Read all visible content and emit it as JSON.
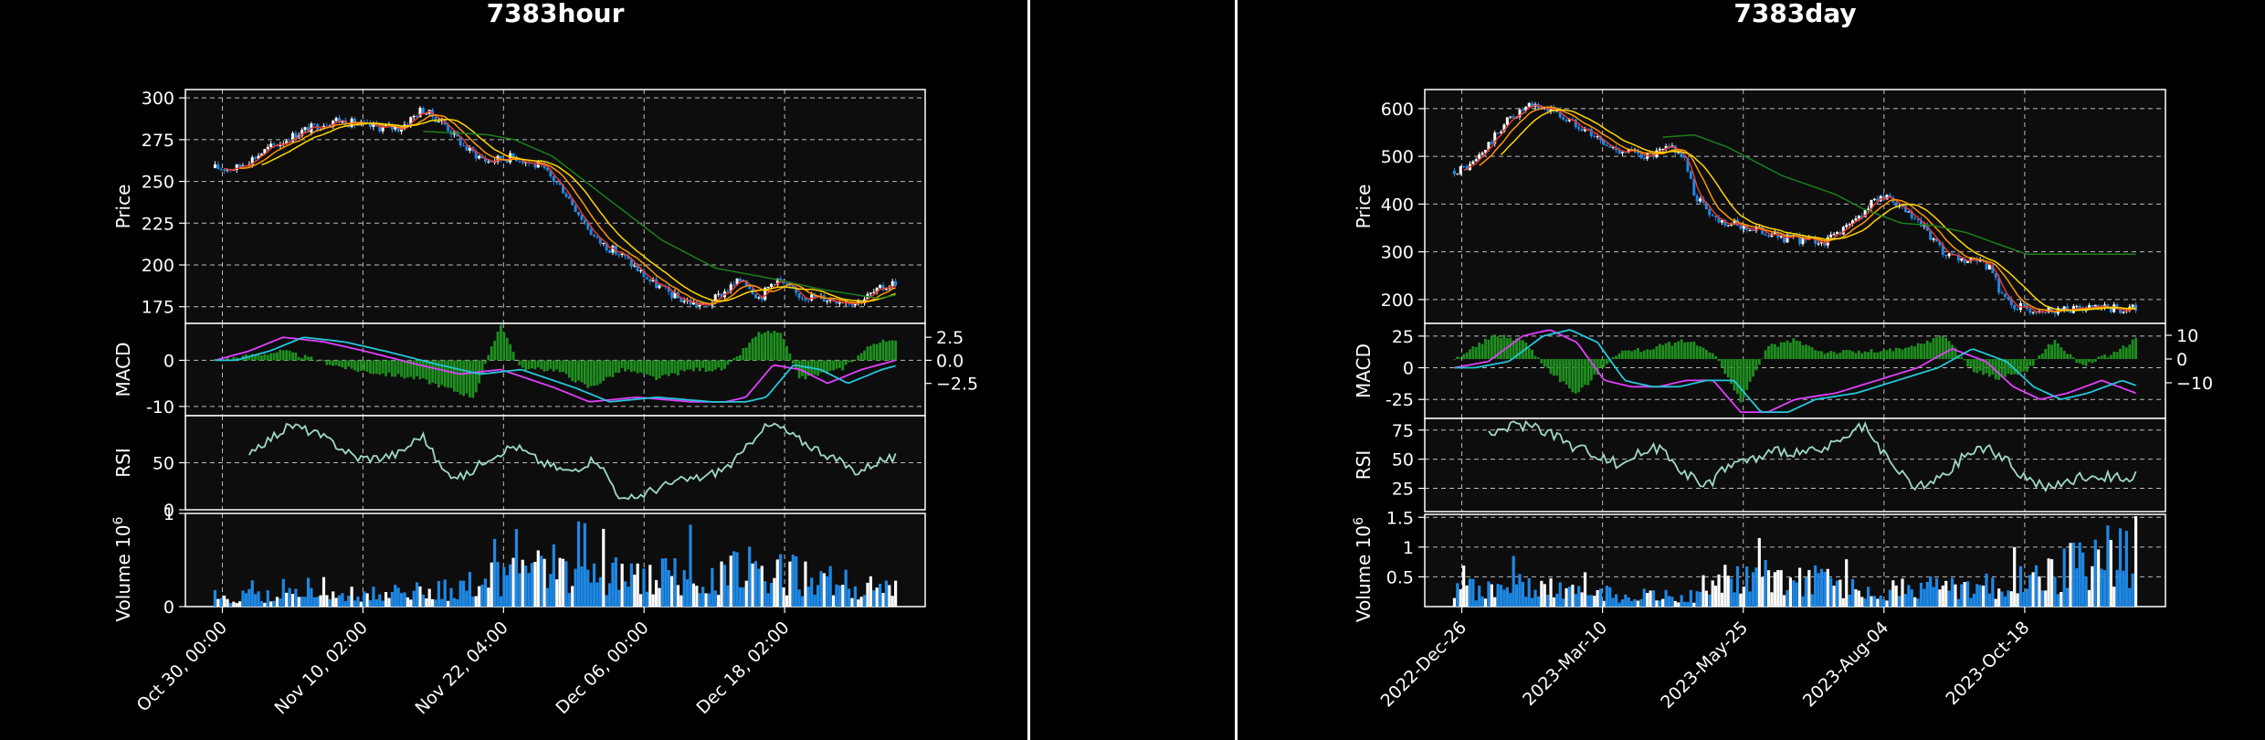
{
  "chart_data": [
    {
      "type": "candlestick",
      "title": "7383hour",
      "price_label": "Price",
      "macd_label": "MACD",
      "rsi_label": "RSI",
      "volume_label": "Volume",
      "volume_exp": "6",
      "x_ticks": [
        "Oct 30, 00:00",
        "Nov 10, 02:00",
        "Nov 22, 04:00",
        "Dec 06, 00:00",
        "Dec 18, 02:00"
      ],
      "x_tick_pos": [
        0.05,
        0.24,
        0.43,
        0.62,
        0.81
      ],
      "price_ylim": [
        165,
        305
      ],
      "price_ticks": [
        175,
        200,
        225,
        250,
        275,
        300
      ],
      "price_anchors": [
        [
          0,
          258
        ],
        [
          0.04,
          258
        ],
        [
          0.1,
          270
        ],
        [
          0.16,
          280
        ],
        [
          0.22,
          287
        ],
        [
          0.28,
          283
        ],
        [
          0.34,
          282
        ],
        [
          0.38,
          293
        ],
        [
          0.42,
          285
        ],
        [
          0.46,
          270
        ],
        [
          0.5,
          262
        ],
        [
          0.55,
          265
        ],
        [
          0.6,
          258
        ],
        [
          0.64,
          245
        ],
        [
          0.7,
          215
        ],
        [
          0.75,
          205
        ],
        [
          0.8,
          190
        ],
        [
          0.85,
          180
        ],
        [
          0.9,
          175
        ],
        [
          0.94,
          185
        ],
        [
          0.97,
          192
        ],
        [
          1,
          180
        ],
        [
          1.03,
          192
        ],
        [
          1.07,
          182
        ],
        [
          1.12,
          180
        ],
        [
          1.18,
          178
        ],
        [
          1.22,
          185
        ],
        [
          1.25,
          190
        ]
      ],
      "green_ma_anchors": [
        [
          0.38,
          280
        ],
        [
          0.5,
          278
        ],
        [
          0.55,
          275
        ],
        [
          0.62,
          265
        ],
        [
          0.72,
          240
        ],
        [
          0.82,
          215
        ],
        [
          0.92,
          198
        ],
        [
          1.02,
          192
        ],
        [
          1.12,
          185
        ],
        [
          1.22,
          180
        ],
        [
          1.25,
          182
        ]
      ],
      "macd_ylim": [
        -12,
        8
      ],
      "macd_ticks_left": [
        0,
        -10
      ],
      "macd_ticks_right": [
        "2.5",
        "0.0",
        "−2.5"
      ],
      "macd_right_vals": [
        2.5,
        0,
        -2.5
      ],
      "macd_right_range": [
        -6,
        4
      ],
      "macd_anchors": [
        [
          0,
          0
        ],
        [
          0.05,
          2
        ],
        [
          0.1,
          5
        ],
        [
          0.16,
          4
        ],
        [
          0.22,
          2
        ],
        [
          0.3,
          -1
        ],
        [
          0.36,
          -3
        ],
        [
          0.42,
          -2
        ],
        [
          0.5,
          -6
        ],
        [
          0.55,
          -9
        ],
        [
          0.62,
          -8
        ],
        [
          0.7,
          -9
        ],
        [
          0.75,
          -9
        ],
        [
          0.78,
          -8
        ],
        [
          0.82,
          -1
        ],
        [
          0.86,
          -2
        ],
        [
          0.9,
          -5
        ],
        [
          0.95,
          -2
        ],
        [
          1,
          0
        ]
      ],
      "hist_anchors": [
        [
          0,
          0
        ],
        [
          0.1,
          1
        ],
        [
          0.2,
          -1
        ],
        [
          0.3,
          -2
        ],
        [
          0.38,
          -4
        ],
        [
          0.42,
          4
        ],
        [
          0.45,
          -1
        ],
        [
          0.5,
          -1
        ],
        [
          0.55,
          -3
        ],
        [
          0.6,
          -1
        ],
        [
          0.65,
          -2
        ],
        [
          0.7,
          -1
        ],
        [
          0.75,
          -1
        ],
        [
          0.8,
          3
        ],
        [
          0.83,
          3
        ],
        [
          0.86,
          -2
        ],
        [
          0.92,
          -1
        ],
        [
          0.97,
          2
        ],
        [
          1,
          2
        ]
      ],
      "rsi_ylim": [
        0,
        100
      ],
      "rsi_ticks": [
        0,
        50
      ],
      "rsi_anchors": [
        [
          0.06,
          62
        ],
        [
          0.1,
          75
        ],
        [
          0.14,
          90
        ],
        [
          0.18,
          82
        ],
        [
          0.22,
          70
        ],
        [
          0.26,
          55
        ],
        [
          0.3,
          55
        ],
        [
          0.34,
          60
        ],
        [
          0.38,
          80
        ],
        [
          0.42,
          40
        ],
        [
          0.46,
          35
        ],
        [
          0.5,
          55
        ],
        [
          0.55,
          68
        ],
        [
          0.6,
          50
        ],
        [
          0.65,
          40
        ],
        [
          0.7,
          55
        ],
        [
          0.75,
          8
        ],
        [
          0.8,
          20
        ],
        [
          0.85,
          30
        ],
        [
          0.9,
          35
        ],
        [
          0.94,
          45
        ],
        [
          0.97,
          60
        ],
        [
          1,
          85
        ],
        [
          1.03,
          90
        ],
        [
          1.07,
          75
        ],
        [
          1.12,
          60
        ],
        [
          1.18,
          40
        ],
        [
          1.22,
          52
        ],
        [
          1.25,
          55
        ]
      ],
      "vol_ylim": [
        0,
        1.0
      ],
      "vol_ticks": [
        0,
        1
      ],
      "vol_anchors": [
        [
          0,
          0.12
        ],
        [
          0.2,
          0.15
        ],
        [
          0.35,
          0.2
        ],
        [
          0.42,
          0.35
        ],
        [
          0.5,
          0.45
        ],
        [
          0.6,
          0.35
        ],
        [
          0.7,
          0.4
        ],
        [
          0.8,
          0.45
        ],
        [
          0.9,
          0.3
        ],
        [
          1,
          0.2
        ]
      ]
    },
    {
      "type": "candlestick",
      "title": "7383day",
      "price_label": "Price",
      "macd_label": "MACD",
      "rsi_label": "RSI",
      "volume_label": "Volume",
      "volume_exp": "6",
      "x_ticks": [
        "2022-Dec-26",
        "2023-Mar-10",
        "2023-May-25",
        "2023-Aug-04",
        "2023-Oct-18"
      ],
      "x_tick_pos": [
        0.05,
        0.24,
        0.43,
        0.62,
        0.81
      ],
      "price_ylim": [
        150,
        640
      ],
      "price_ticks": [
        200,
        300,
        400,
        500,
        600
      ],
      "price_anchors": [
        [
          0,
          470
        ],
        [
          0.03,
          480
        ],
        [
          0.06,
          520
        ],
        [
          0.1,
          580
        ],
        [
          0.14,
          605
        ],
        [
          0.18,
          600
        ],
        [
          0.2,
          580
        ],
        [
          0.24,
          560
        ],
        [
          0.28,
          520
        ],
        [
          0.32,
          510
        ],
        [
          0.36,
          500
        ],
        [
          0.4,
          520
        ],
        [
          0.42,
          500
        ],
        [
          0.44,
          420
        ],
        [
          0.48,
          370
        ],
        [
          0.52,
          355
        ],
        [
          0.56,
          345
        ],
        [
          0.6,
          330
        ],
        [
          0.64,
          325
        ],
        [
          0.68,
          320
        ],
        [
          0.7,
          340
        ],
        [
          0.73,
          360
        ],
        [
          0.76,
          395
        ],
        [
          0.78,
          420
        ],
        [
          0.82,
          390
        ],
        [
          0.86,
          350
        ],
        [
          0.88,
          320
        ],
        [
          0.9,
          290
        ],
        [
          0.94,
          280
        ],
        [
          0.98,
          270
        ],
        [
          1,
          220
        ],
        [
          1.02,
          190
        ],
        [
          1.05,
          180
        ],
        [
          1.2,
          180
        ]
      ],
      "green_ma_anchors": [
        [
          0.38,
          540
        ],
        [
          0.44,
          545
        ],
        [
          0.5,
          520
        ],
        [
          0.6,
          460
        ],
        [
          0.7,
          420
        ],
        [
          0.75,
          390
        ],
        [
          0.82,
          360
        ],
        [
          0.88,
          355
        ],
        [
          0.94,
          340
        ],
        [
          1,
          315
        ],
        [
          1.05,
          295
        ]
      ],
      "macd_ylim": [
        -40,
        35
      ],
      "macd_ticks_left": [
        25,
        0,
        -25
      ],
      "macd_ticks_right": [
        "10",
        "0",
        "−10"
      ],
      "macd_right_vals": [
        10,
        0,
        -10
      ],
      "macd_right_range": [
        -25,
        15
      ],
      "macd_anchors": [
        [
          0,
          0
        ],
        [
          0.05,
          5
        ],
        [
          0.1,
          25
        ],
        [
          0.14,
          30
        ],
        [
          0.18,
          20
        ],
        [
          0.22,
          -10
        ],
        [
          0.26,
          -15
        ],
        [
          0.3,
          -15
        ],
        [
          0.34,
          -10
        ],
        [
          0.38,
          -10
        ],
        [
          0.42,
          -35
        ],
        [
          0.46,
          -35
        ],
        [
          0.5,
          -25
        ],
        [
          0.56,
          -20
        ],
        [
          0.62,
          -10
        ],
        [
          0.68,
          0
        ],
        [
          0.73,
          15
        ],
        [
          0.78,
          5
        ],
        [
          0.82,
          -15
        ],
        [
          0.86,
          -25
        ],
        [
          0.9,
          -20
        ],
        [
          0.95,
          -10
        ],
        [
          1,
          -20
        ]
      ],
      "hist_anchors": [
        [
          0,
          0
        ],
        [
          0.06,
          10
        ],
        [
          0.1,
          8
        ],
        [
          0.14,
          -5
        ],
        [
          0.18,
          -15
        ],
        [
          0.24,
          3
        ],
        [
          0.28,
          4
        ],
        [
          0.34,
          8
        ],
        [
          0.38,
          3
        ],
        [
          0.42,
          -18
        ],
        [
          0.46,
          5
        ],
        [
          0.5,
          8
        ],
        [
          0.54,
          3
        ],
        [
          0.6,
          3
        ],
        [
          0.66,
          4
        ],
        [
          0.72,
          10
        ],
        [
          0.76,
          -5
        ],
        [
          0.8,
          -8
        ],
        [
          0.84,
          -5
        ],
        [
          0.88,
          8
        ],
        [
          0.92,
          -3
        ],
        [
          0.97,
          3
        ],
        [
          1,
          8
        ]
      ],
      "rsi_ylim": [
        5,
        85
      ],
      "rsi_ticks": [
        25,
        50,
        75
      ],
      "rsi_anchors": [
        [
          0.06,
          70
        ],
        [
          0.1,
          78
        ],
        [
          0.14,
          80
        ],
        [
          0.18,
          72
        ],
        [
          0.22,
          60
        ],
        [
          0.26,
          55
        ],
        [
          0.3,
          45
        ],
        [
          0.34,
          55
        ],
        [
          0.38,
          60
        ],
        [
          0.42,
          40
        ],
        [
          0.46,
          25
        ],
        [
          0.5,
          45
        ],
        [
          0.55,
          50
        ],
        [
          0.6,
          58
        ],
        [
          0.65,
          55
        ],
        [
          0.7,
          62
        ],
        [
          0.75,
          78
        ],
        [
          0.8,
          45
        ],
        [
          0.85,
          25
        ],
        [
          0.9,
          35
        ],
        [
          0.94,
          55
        ],
        [
          0.98,
          60
        ],
        [
          1.02,
          45
        ],
        [
          1.06,
          30
        ],
        [
          1.1,
          25
        ],
        [
          1.15,
          35
        ]
      ],
      "vol_ylim": [
        0,
        1.55
      ],
      "vol_ticks": [
        0.5,
        1.0,
        1.5
      ],
      "vol_anchors": [
        [
          0,
          0.3
        ],
        [
          0.1,
          0.4
        ],
        [
          0.2,
          0.25
        ],
        [
          0.3,
          0.2
        ],
        [
          0.36,
          0.2
        ],
        [
          0.4,
          0.5
        ],
        [
          0.5,
          0.55
        ],
        [
          0.6,
          0.3
        ],
        [
          0.7,
          0.35
        ],
        [
          0.8,
          0.4
        ],
        [
          0.88,
          0.6
        ],
        [
          0.94,
          0.9
        ],
        [
          1,
          1.0
        ]
      ]
    }
  ]
}
